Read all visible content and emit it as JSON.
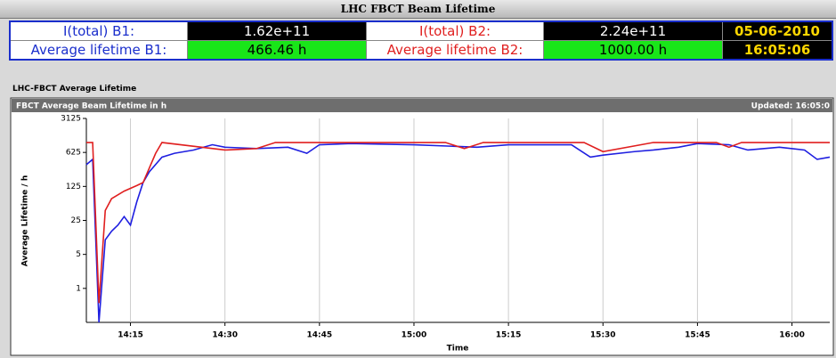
{
  "window_title": "LHC FBCT Beam Lifetime",
  "table": {
    "rows": [
      [
        "I(total) B1:",
        "1.62e+11",
        "I(total) B2:",
        "2.24e+11",
        "05-06-2010"
      ],
      [
        "Average lifetime B1:",
        "466.46 h",
        "Average lifetime B2:",
        "1000.00 h",
        "16:05:06"
      ]
    ]
  },
  "panel_label": "LHC-FBCT Average Lifetime",
  "chart_header": "FBCT Average Beam Lifetime in h",
  "updated": "Updated: 16:05:0",
  "chart_data": {
    "type": "line",
    "ylabel": "Average Lifetime / h",
    "xlabel": "Time",
    "log_y": true,
    "xgrid": true,
    "xlim": [
      "14:08",
      "16:06"
    ],
    "xticks": [
      "14:15",
      "14:30",
      "14:45",
      "15:00",
      "15:15",
      "15:30",
      "15:45",
      "16:00"
    ],
    "ylim": [
      0.2,
      3125
    ],
    "yticks": [
      1,
      5,
      25,
      125,
      625,
      3125
    ],
    "series": [
      {
        "name": "B1",
        "color": "#1f1fe0",
        "x": [
          "14:08",
          "14:09",
          "14:10",
          "14:11",
          "14:12",
          "14:13",
          "14:14",
          "14:15",
          "14:16",
          "14:17",
          "14:18",
          "14:20",
          "14:22",
          "14:25",
          "14:28",
          "14:30",
          "14:35",
          "14:40",
          "14:43",
          "14:45",
          "14:50",
          "15:00",
          "15:10",
          "15:15",
          "15:25",
          "15:28",
          "15:30",
          "15:35",
          "15:38",
          "15:42",
          "15:45",
          "15:50",
          "15:53",
          "15:58",
          "16:02",
          "16:04",
          "16:06"
        ],
        "values": [
          350,
          450,
          0.2,
          10,
          15,
          20,
          30,
          20,
          60,
          150,
          250,
          500,
          600,
          700,
          900,
          800,
          750,
          800,
          600,
          900,
          950,
          900,
          800,
          900,
          900,
          500,
          550,
          650,
          700,
          800,
          950,
          900,
          700,
          800,
          700,
          450,
          500
        ]
      },
      {
        "name": "B2",
        "color": "#e01f1f",
        "x": [
          "14:08",
          "14:09",
          "14:10",
          "14:11",
          "14:12",
          "14:14",
          "14:16",
          "14:17",
          "14:18",
          "14:19",
          "14:20",
          "14:30",
          "14:35",
          "14:38",
          "15:05",
          "15:08",
          "15:11",
          "15:27",
          "15:30",
          "15:38",
          "15:48",
          "15:50",
          "15:52",
          "16:06"
        ],
        "values": [
          1000,
          1000,
          0.5,
          40,
          70,
          100,
          130,
          150,
          300,
          600,
          1000,
          700,
          750,
          1000,
          1000,
          750,
          1000,
          1000,
          650,
          1000,
          1000,
          800,
          1000,
          1000
        ]
      }
    ]
  }
}
